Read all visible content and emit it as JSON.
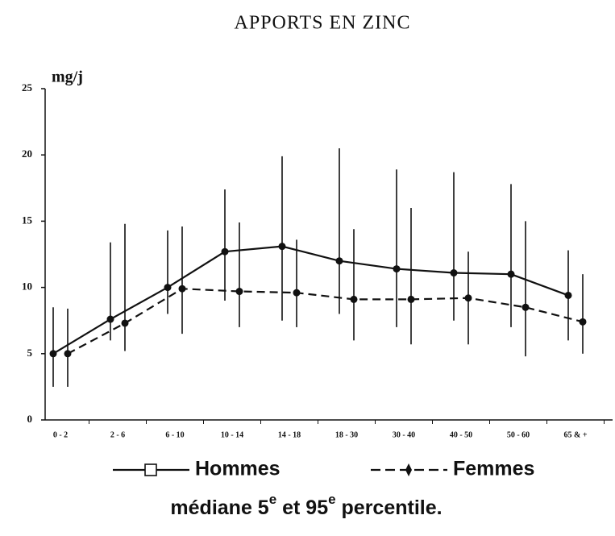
{
  "chart_data": {
    "type": "line",
    "title": "APPORTS EN ZINC",
    "ylabel": "mg/j",
    "categories": [
      "0 - 2",
      "2 - 6",
      "6 - 10",
      "10 - 14",
      "14 - 18",
      "18 - 30",
      "30 - 40",
      "40 - 50",
      "50 - 60",
      "65 & +"
    ],
    "ylim": [
      0,
      25
    ],
    "yticks": [
      0,
      5,
      10,
      15,
      20,
      25
    ],
    "series": [
      {
        "name": "Hommes",
        "color": "#111111",
        "dashed": false,
        "marker": "square",
        "values": [
          5.0,
          7.6,
          10.0,
          12.7,
          13.1,
          12.0,
          11.4,
          11.1,
          11.0,
          9.4
        ],
        "lower": [
          2.5,
          6.0,
          8.0,
          9.0,
          7.5,
          8.0,
          7.0,
          7.5,
          7.0,
          6.0
        ],
        "upper": [
          8.5,
          13.4,
          14.3,
          17.4,
          19.9,
          20.5,
          18.9,
          18.7,
          17.8,
          12.8
        ]
      },
      {
        "name": "Femmes",
        "color": "#111111",
        "dashed": true,
        "marker": "diamond",
        "values": [
          5.0,
          7.3,
          9.9,
          9.7,
          9.6,
          9.1,
          9.1,
          9.2,
          8.5,
          7.4
        ],
        "lower": [
          2.5,
          5.2,
          6.5,
          7.0,
          7.0,
          6.0,
          5.7,
          5.7,
          4.8,
          5.0
        ],
        "upper": [
          8.4,
          14.8,
          14.6,
          14.9,
          13.6,
          14.4,
          16.0,
          12.7,
          15.0,
          11.0
        ]
      }
    ],
    "note": [
      "médiane 5",
      "e",
      " et 95",
      "e",
      " percentile."
    ]
  }
}
